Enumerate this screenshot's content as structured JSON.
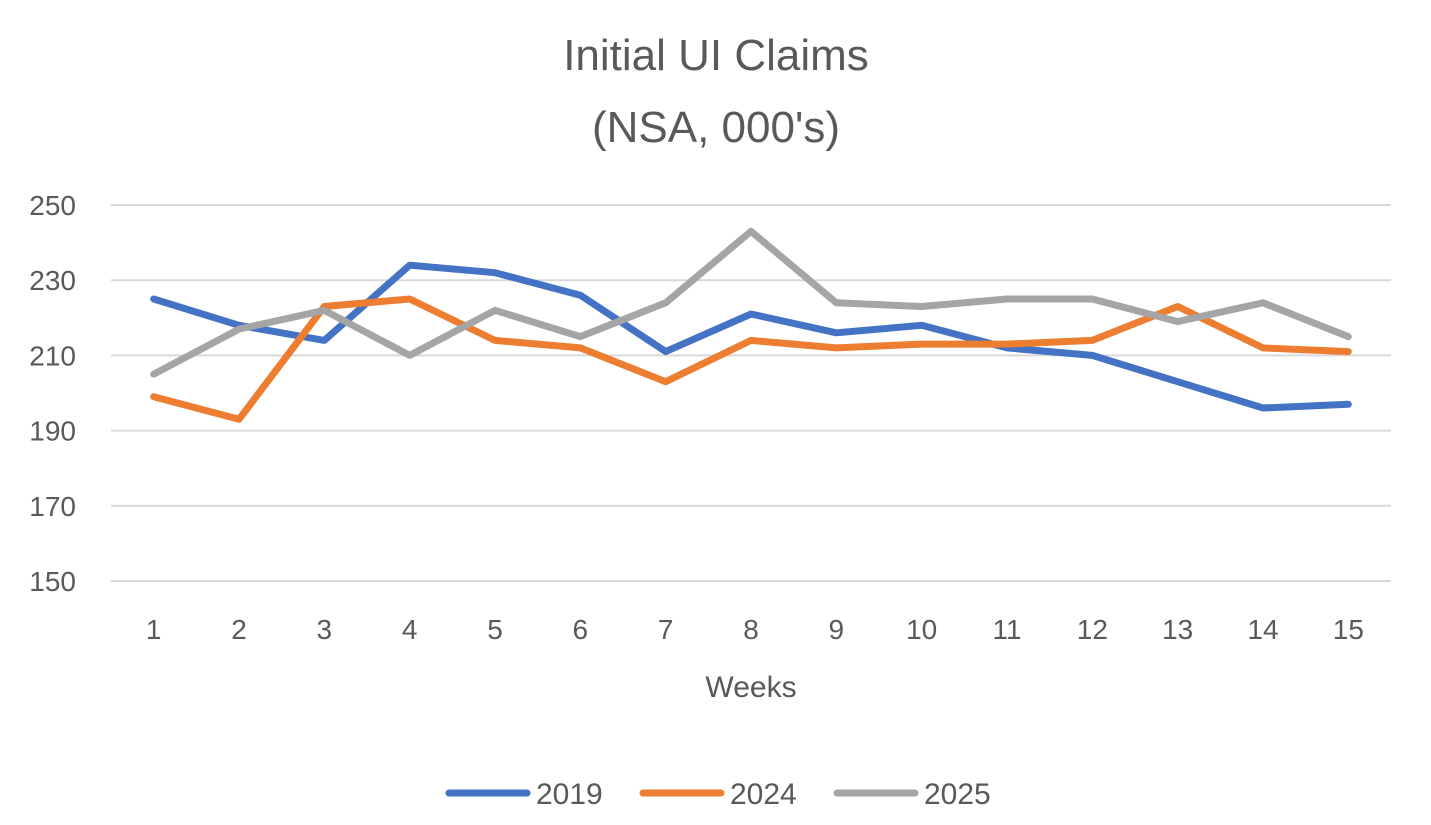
{
  "chart_data": {
    "type": "line",
    "title": "Initial UI Claims",
    "subtitle": "(NSA, 000's)",
    "xlabel": "Weeks",
    "ylabel": "",
    "categories": [
      "1",
      "2",
      "3",
      "4",
      "5",
      "6",
      "7",
      "8",
      "9",
      "10",
      "11",
      "12",
      "13",
      "14",
      "15"
    ],
    "ylim": [
      150,
      250
    ],
    "yticks": [
      150,
      170,
      190,
      210,
      230,
      250
    ],
    "grid": true,
    "legend_position": "bottom",
    "series": [
      {
        "name": "2019",
        "color": "#4472C4",
        "values": [
          225,
          218,
          214,
          234,
          232,
          226,
          211,
          221,
          216,
          218,
          212,
          210,
          203,
          196,
          197
        ]
      },
      {
        "name": "2024",
        "color": "#ED7D31",
        "values": [
          199,
          193,
          223,
          225,
          214,
          212,
          203,
          214,
          212,
          213,
          213,
          214,
          223,
          212,
          211
        ]
      },
      {
        "name": "2025",
        "color": "#A5A5A5",
        "values": [
          205,
          217,
          222,
          210,
          222,
          215,
          224,
          243,
          224,
          223,
          225,
          225,
          219,
          224,
          215
        ]
      }
    ]
  }
}
